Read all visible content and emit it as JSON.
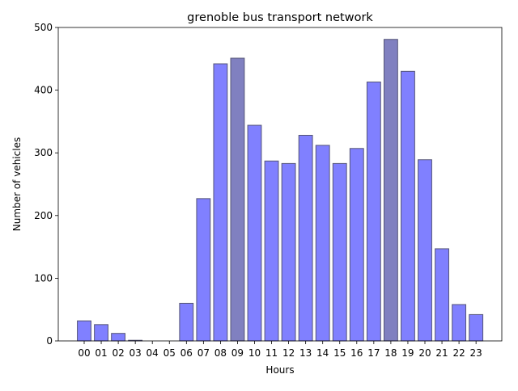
{
  "chart_data": {
    "type": "bar",
    "title": "grenoble bus transport network",
    "xlabel": "Hours",
    "ylabel": "Number of vehicles",
    "ylim": [
      0,
      500
    ],
    "yticks": [
      0,
      100,
      200,
      300,
      400,
      500
    ],
    "grid": false,
    "categories": [
      "00",
      "01",
      "02",
      "03",
      "04",
      "05",
      "06",
      "07",
      "08",
      "09",
      "10",
      "11",
      "12",
      "13",
      "14",
      "15",
      "16",
      "17",
      "18",
      "19",
      "20",
      "21",
      "22",
      "23"
    ],
    "values": [
      32,
      26,
      12,
      1,
      0,
      0,
      60,
      227,
      442,
      451,
      344,
      287,
      283,
      328,
      312,
      283,
      307,
      413,
      481,
      430,
      289,
      147,
      58,
      42
    ],
    "highlighted": [
      "09",
      "18"
    ],
    "colors": {
      "bar": "#8080ff",
      "bar_highlight": "#8080c0",
      "bar_edge": "#555577",
      "axis": "#000000"
    }
  }
}
